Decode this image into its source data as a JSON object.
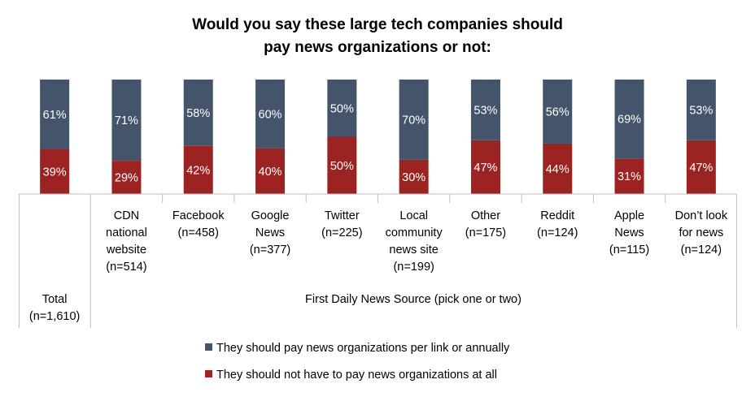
{
  "chart_data": {
    "type": "bar",
    "stacked": true,
    "percent": true,
    "title_lines": [
      "Would you say these large tech companies should",
      "pay news organizations or not:"
    ],
    "categories": [
      [
        "Total",
        "(n=1,610)"
      ],
      [
        "CDN",
        "national",
        "website",
        "(n=514)"
      ],
      [
        "Facebook",
        "(n=458)"
      ],
      [
        "Google",
        "News",
        "(n=377)"
      ],
      [
        "Twitter",
        "(n=225)"
      ],
      [
        "Local",
        "community",
        "news site",
        "(n=199)"
      ],
      [
        "Other",
        "(n=175)"
      ],
      [
        "Reddit",
        "(n=124)"
      ],
      [
        "Apple",
        "News",
        "(n=115)"
      ],
      [
        "Don’t look",
        "for news",
        "(n=124)"
      ]
    ],
    "group_label": "First Daily News Source (pick one or two)",
    "series": [
      {
        "name": "They should pay news organizations per link or annually",
        "color": "#44546a",
        "values": [
          61,
          71,
          58,
          60,
          50,
          70,
          53,
          56,
          69,
          53
        ]
      },
      {
        "name": "They should not have to pay news organizations at all",
        "color": "#9b2422",
        "values": [
          39,
          29,
          42,
          40,
          50,
          30,
          47,
          44,
          31,
          47
        ]
      }
    ],
    "ylim": [
      0,
      100
    ],
    "legend_position": "bottom"
  }
}
